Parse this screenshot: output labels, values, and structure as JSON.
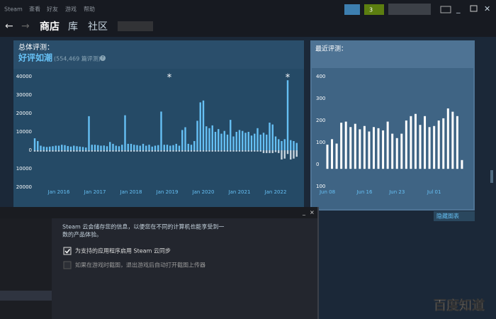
{
  "menu": [
    "Steam",
    "查看",
    "好友",
    "游戏",
    "帮助"
  ],
  "notifications": "3",
  "nav": {
    "store": "商店",
    "library": "库",
    "community": "社区"
  },
  "reviews": {
    "overall_label": "总体评测：",
    "overall_rating": "好评如潮",
    "overall_count": "(554,469 篇评测)",
    "help": "?",
    "recent_label": "最近评测：",
    "hide_chart": "隐藏图表",
    "annotations": [
      "*",
      "*"
    ],
    "overall_chart": {
      "type": "bar",
      "categories": [
        null,
        null,
        null,
        null,
        null,
        null,
        null,
        null,
        "Jan 2016",
        null,
        null,
        null,
        null,
        null,
        null,
        null,
        null,
        null,
        null,
        null,
        "Jan 2017",
        null,
        null,
        null,
        null,
        null,
        null,
        null,
        null,
        null,
        null,
        null,
        "Jan 2018",
        null,
        null,
        null,
        null,
        null,
        null,
        null,
        null,
        null,
        null,
        null,
        "Jan 2019",
        null,
        null,
        null,
        null,
        null,
        null,
        null,
        null,
        null,
        null,
        null,
        "Jan 2020",
        null,
        null,
        null,
        null,
        null,
        null,
        null,
        null,
        null,
        null,
        null,
        "Jan 2021",
        null,
        null,
        null,
        null,
        null,
        null,
        null,
        null,
        null,
        null,
        null,
        "Jan 2022",
        null,
        null,
        null,
        null,
        null,
        null,
        null
      ],
      "series": [
        {
          "color": "#66c0f4",
          "values": [
            6500,
            5000,
            2500,
            2000,
            1800,
            2000,
            2200,
            2500,
            2500,
            3000,
            2800,
            2300,
            2000,
            2500,
            2200,
            2000,
            1800,
            1500,
            18500,
            3000,
            3000,
            2800,
            2500,
            2600,
            2200,
            4500,
            3500,
            2500,
            2200,
            3000,
            19000,
            3500,
            3500,
            3000,
            2800,
            2500,
            3500,
            2500,
            3000,
            2000,
            2500,
            2800,
            21000,
            3000,
            3000,
            2500,
            2800,
            3500,
            2500,
            11000,
            12500,
            3500,
            3000,
            5000,
            16000,
            26000,
            27000,
            13000,
            12000,
            13500,
            10000,
            11500,
            9000,
            10500,
            8500,
            16500,
            7500,
            10000,
            11000,
            10500,
            9500,
            10000,
            8000,
            9000,
            12000,
            8500,
            9500,
            8500,
            15000,
            14000,
            7500,
            6000,
            5000,
            6000,
            38000,
            5500,
            5000,
            4000
          ]
        },
        {
          "color": "#c6d4df",
          "values": [
            -700,
            -700,
            -700,
            -700,
            -700,
            -700,
            -700,
            -700,
            -700,
            -700,
            -700,
            -700,
            -700,
            -700,
            -700,
            -700,
            -700,
            -700,
            -700,
            -700,
            -700,
            -700,
            -700,
            -700,
            -700,
            -700,
            -700,
            -700,
            -700,
            -700,
            -700,
            -700,
            -700,
            -700,
            -700,
            -700,
            -700,
            -700,
            -700,
            -700,
            -700,
            -700,
            -700,
            -700,
            -700,
            -700,
            -700,
            -700,
            -700,
            -700,
            -700,
            -700,
            -700,
            -700,
            -700,
            -700,
            -700,
            -700,
            -700,
            -700,
            -700,
            -700,
            -700,
            -700,
            -700,
            -700,
            -700,
            -700,
            -700,
            -700,
            -700,
            -700,
            -700,
            -700,
            -700,
            -700,
            -1500,
            -1500,
            -1500,
            -1500,
            -1000,
            -1500,
            -5000,
            -4500,
            -2000,
            -5000,
            -4500,
            -3500
          ]
        }
      ],
      "ylim": [
        -20000,
        40000
      ],
      "yticks": [
        {
          "value": -20000,
          "label": "20000"
        },
        {
          "value": -10000,
          "label": "10000"
        },
        0,
        10000,
        20000,
        30000,
        40000
      ]
    },
    "recent_chart": {
      "type": "bar",
      "categories": [
        "Jun 08",
        null,
        null,
        null,
        null,
        null,
        null,
        null,
        "Jun 16",
        null,
        null,
        null,
        null,
        null,
        null,
        "Jun 23",
        null,
        null,
        null,
        null,
        null,
        null,
        null,
        "Jul 01",
        null,
        null,
        null,
        null,
        null,
        null
      ],
      "series": [
        {
          "color": "#ffffff",
          "values": [
            90,
            115,
            95,
            190,
            195,
            170,
            185,
            160,
            175,
            150,
            170,
            165,
            155,
            195,
            140,
            120,
            140,
            200,
            220,
            230,
            180,
            220,
            170,
            175,
            200,
            210,
            255,
            240,
            220,
            20
          ]
        },
        {
          "color": "#ffffff",
          "values": [
            -20,
            -20,
            -20,
            -20,
            -20,
            -20,
            -20,
            -20,
            -20,
            -20,
            -20,
            -20,
            -20,
            -20,
            -20,
            -20,
            -20,
            -20,
            -20,
            -20,
            -20,
            -20,
            -20,
            -20,
            -20,
            -20,
            -20,
            -20,
            -20,
            -20
          ]
        }
      ],
      "ylim": [
        -100,
        400
      ],
      "yticks": [
        {
          "value": -100,
          "label": "100"
        },
        0,
        100,
        200,
        300,
        400
      ]
    }
  },
  "dialog": {
    "description": [
      "Steam 云会储存您的信息，以便您在不同的计算机也能享受到一",
      "数的产品体验。"
    ],
    "options": [
      {
        "label": "为支持的应用程序启用 Steam 云同步",
        "checked": true
      },
      {
        "label": "如果在游戏时截图，退出游戏后自动打开截图上传器",
        "checked": false
      }
    ]
  },
  "watermark": "百度知道"
}
